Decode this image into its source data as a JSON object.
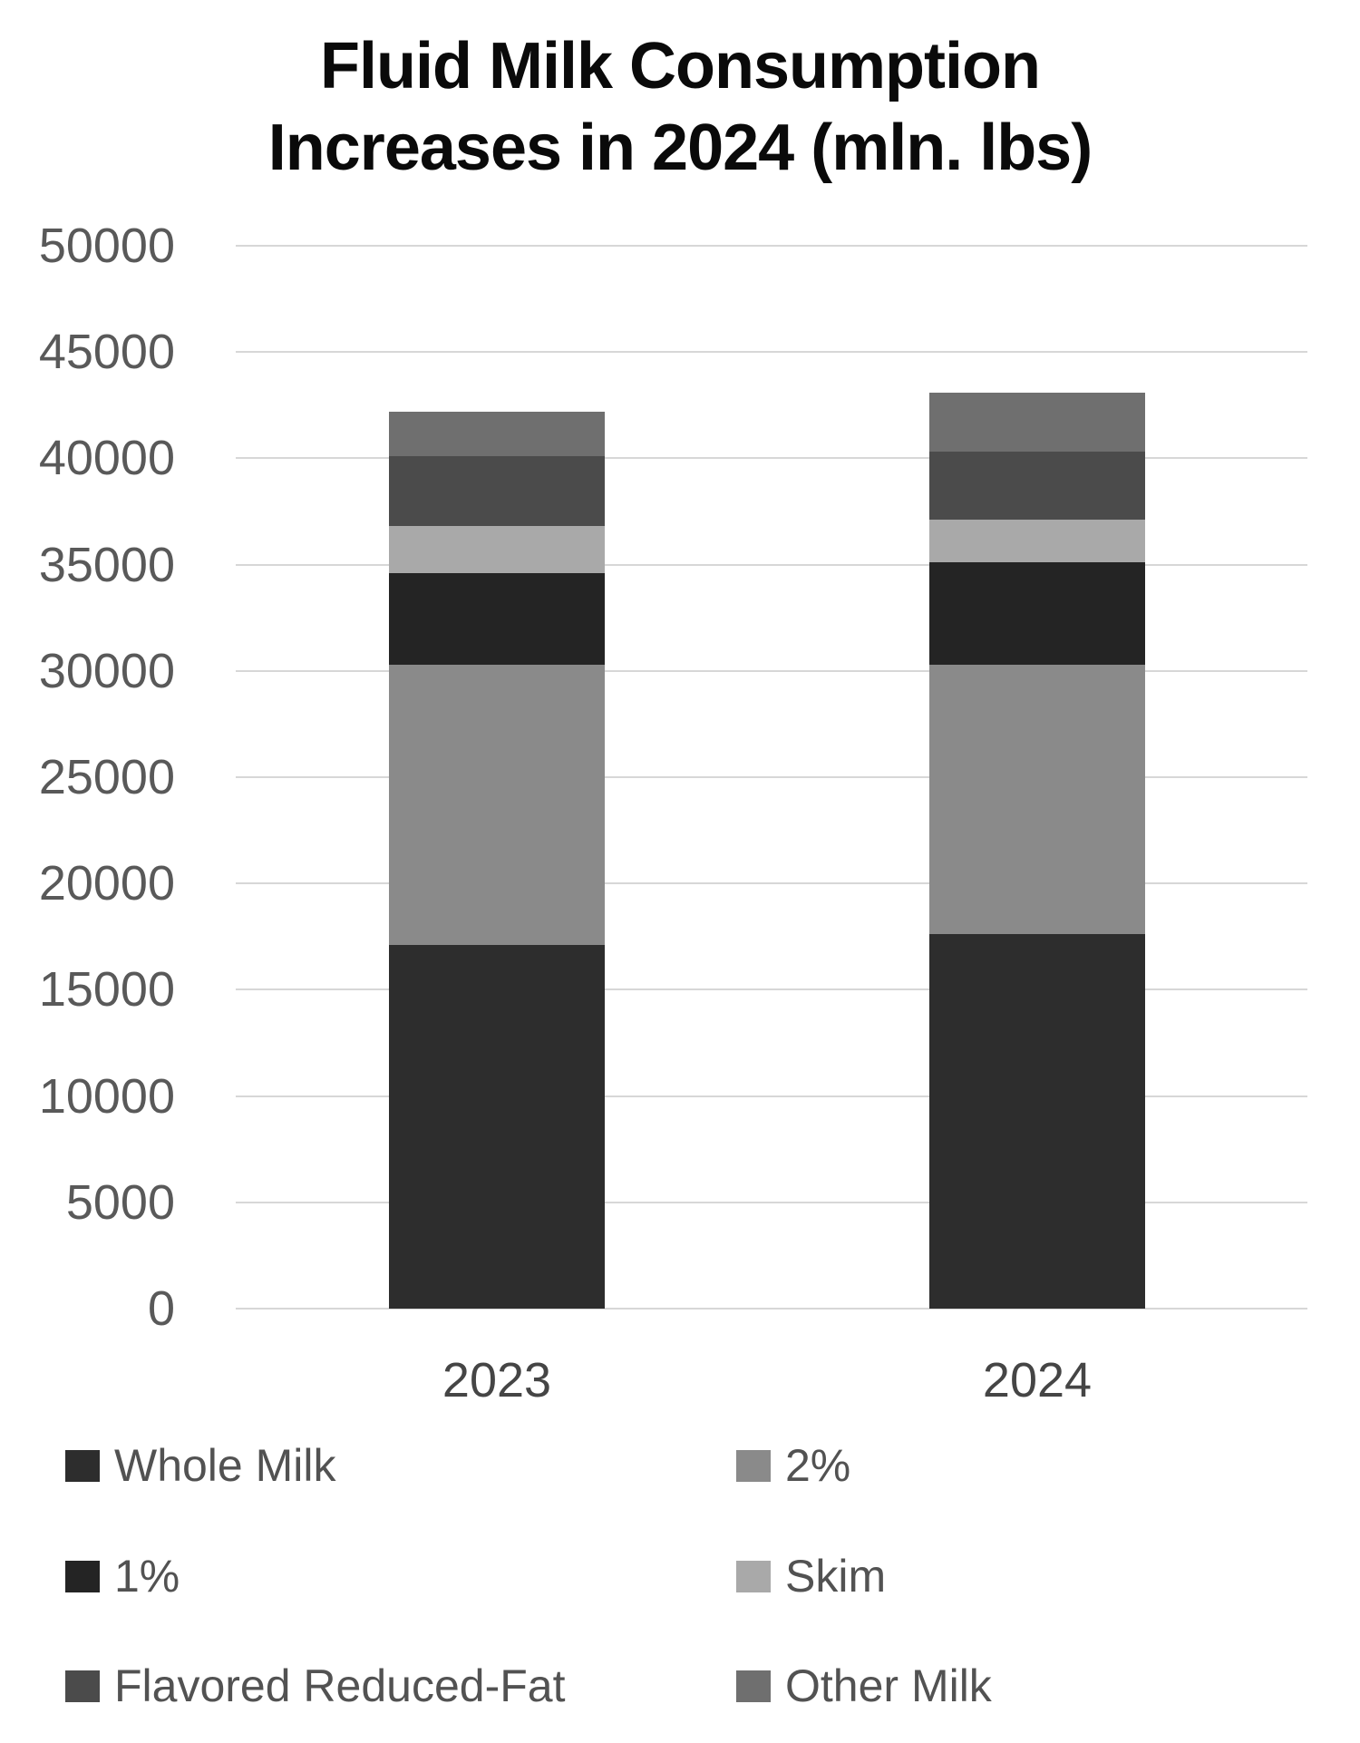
{
  "title": {
    "lines": [
      "Fluid Milk Consumption",
      "Increases in 2024 (mln. lbs)"
    ]
  },
  "chart_data": {
    "type": "bar",
    "subtype": "stacked-vertical",
    "title": "Fluid Milk Consumption Increases in 2024 (mln. lbs)",
    "categories": [
      "2023",
      "2024"
    ],
    "series": [
      {
        "name": "Whole Milk",
        "color": "#2d2d2d",
        "values": [
          17100,
          17600
        ]
      },
      {
        "name": "2%",
        "color": "#8a8a8a",
        "values": [
          13200,
          12700
        ]
      },
      {
        "name": "1%",
        "color": "#242424",
        "values": [
          4300,
          4800
        ]
      },
      {
        "name": "Skim",
        "color": "#a9a9a9",
        "values": [
          2200,
          2000
        ]
      },
      {
        "name": "Flavored Reduced-Fat",
        "color": "#4b4b4b",
        "values": [
          3300,
          3200
        ]
      },
      {
        "name": "Other Milk",
        "color": "#6f6f6f",
        "values": [
          2100,
          2800
        ]
      }
    ],
    "totals": [
      42200,
      43100
    ],
    "xlabel": "",
    "ylabel": "",
    "ylim": [
      0,
      50000
    ],
    "y_tick_step": 5000,
    "y_tick_labels": [
      "0",
      "5000",
      "10000",
      "15000",
      "20000",
      "25000",
      "30000",
      "35000",
      "40000",
      "45000",
      "50000"
    ],
    "grid": true,
    "legend_position": "bottom",
    "legend_columns": 2,
    "legend_rows": [
      [
        "Whole Milk",
        "2%"
      ],
      [
        "1%",
        "Skim"
      ],
      [
        "Flavored Reduced-Fat",
        "Other Milk"
      ]
    ]
  },
  "colors": {
    "background": "#ffffff",
    "gridline": "#d7d7d7",
    "axis_label": "#595959",
    "category_label": "#454545",
    "legend_label": "#525252",
    "title": "#0a0a0a"
  }
}
